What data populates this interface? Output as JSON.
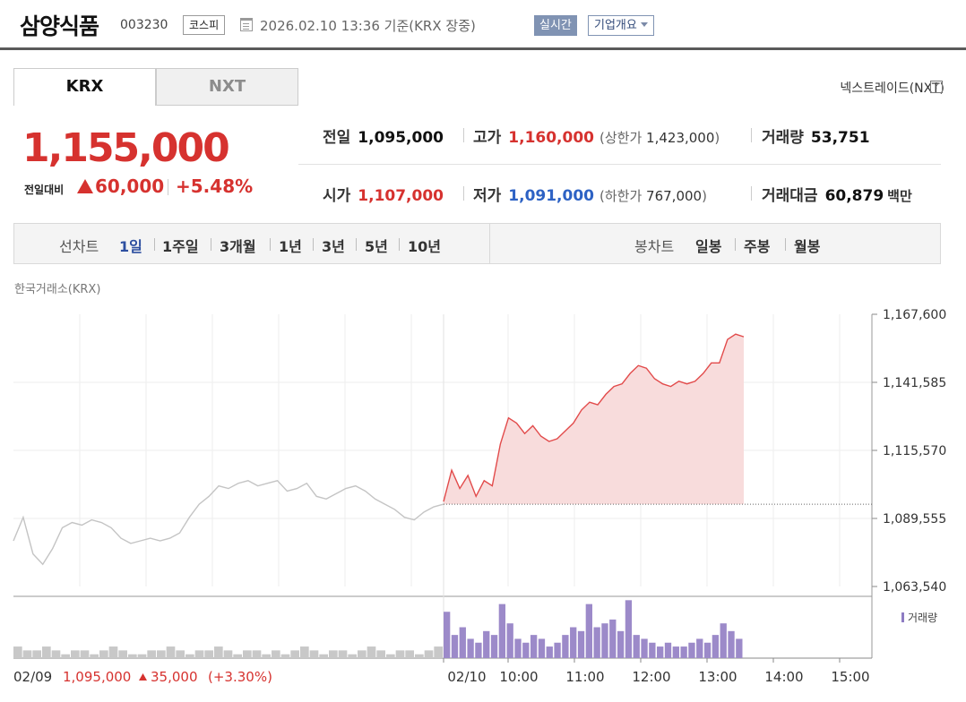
{
  "header": {
    "company": "삼양식품",
    "code": "003230",
    "market": "코스피",
    "date": "2026.02.10 13:36 기준(KRX 장중)",
    "realtime": "실시간",
    "profile": "기업개요"
  },
  "tabs": [
    {
      "label": "KRX",
      "active": true
    },
    {
      "label": "NXT",
      "active": false
    }
  ],
  "nxt_link": "넥스트레이드(NXT)",
  "price": {
    "current": "1,155,000",
    "change_label": "전일대비",
    "change": "60,000",
    "change_pct": "+5.48%"
  },
  "stats": {
    "prev_close": {
      "label": "전일",
      "value": "1,095,000"
    },
    "high": {
      "label": "고가",
      "value": "1,160,000",
      "limit_label": "상한가",
      "limit": "1,423,000"
    },
    "volume": {
      "label": "거래량",
      "value": "53,751"
    },
    "open": {
      "label": "시가",
      "value": "1,107,000"
    },
    "low": {
      "label": "저가",
      "value": "1,091,000",
      "limit_label": "하한가",
      "limit": "767,000"
    },
    "amount": {
      "label": "거래대금",
      "value": "60,879",
      "unit": "백만"
    }
  },
  "period_bar": {
    "line_label": "선차트",
    "line_items": [
      "1일",
      "1주일",
      "3개월",
      "1년",
      "3년",
      "5년",
      "10년"
    ],
    "active": "1일",
    "candle_label": "봉차트",
    "candle_items": [
      "일봉",
      "주봉",
      "월봉"
    ]
  },
  "chart_data": {
    "type": "line",
    "caption": "한국거래소(KRX)",
    "y_ticks": [
      "1,167,600",
      "1,141,585",
      "1,115,570",
      "1,089,555",
      "1,063,540"
    ],
    "ylim": [
      1063540,
      1167600
    ],
    "prev_close": 1095000,
    "x_ticks": [
      "02/10",
      "10:00",
      "11:00",
      "12:00",
      "13:00",
      "14:00",
      "15:00"
    ],
    "prev_day": {
      "label": "02/09",
      "close": "1,095,000",
      "change": "35,000",
      "change_pct": "(+3.30%)",
      "values": [
        1081000,
        1090000,
        1076000,
        1072000,
        1078000,
        1086000,
        1088000,
        1087000,
        1089000,
        1088000,
        1086000,
        1082000,
        1080000,
        1081000,
        1082000,
        1081000,
        1082000,
        1084000,
        1090000,
        1095000,
        1098000,
        1102000,
        1101000,
        1103000,
        1104000,
        1102000,
        1103000,
        1104000,
        1100000,
        1101000,
        1103000,
        1098000,
        1097000,
        1099000,
        1101000,
        1102000,
        1100000,
        1097000,
        1095000,
        1093000,
        1090000,
        1089000,
        1092000,
        1094000,
        1095000
      ]
    },
    "today": {
      "label": "02/10",
      "values": [
        1096000,
        1108000,
        1101000,
        1106000,
        1098000,
        1104000,
        1102000,
        1118000,
        1128000,
        1126000,
        1122000,
        1125000,
        1121000,
        1119000,
        1120000,
        1123000,
        1126000,
        1131000,
        1134000,
        1133000,
        1137000,
        1140000,
        1141000,
        1145000,
        1148000,
        1147000,
        1143000,
        1141000,
        1140000,
        1142000,
        1141000,
        1142000,
        1145000,
        1149000,
        1149000,
        1158000,
        1160000,
        1159000
      ]
    },
    "legend": "거래량",
    "volume_prev": [
      3,
      2,
      2,
      3,
      2,
      1,
      2,
      2,
      1,
      2,
      3,
      2,
      1,
      1,
      2,
      2,
      3,
      2,
      1,
      2,
      2,
      3,
      2,
      1,
      2,
      2,
      1,
      2,
      1,
      2,
      3,
      2,
      1,
      2,
      2,
      1,
      2,
      3,
      2,
      1,
      2,
      2,
      1,
      2,
      3
    ],
    "volume_today": [
      12,
      6,
      8,
      5,
      4,
      7,
      6,
      14,
      9,
      5,
      4,
      6,
      5,
      3,
      4,
      6,
      8,
      7,
      14,
      8,
      9,
      10,
      7,
      15,
      6,
      5,
      4,
      3,
      4,
      3,
      3,
      4,
      5,
      4,
      6,
      9,
      7,
      5
    ]
  }
}
